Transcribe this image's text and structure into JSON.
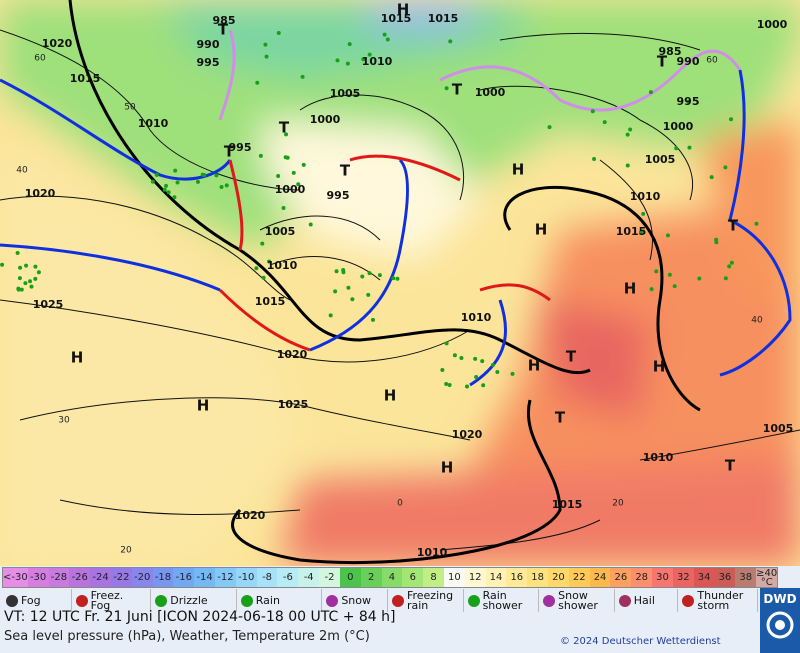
{
  "map": {
    "pressure_labels": [
      "1020",
      "1015",
      "1010",
      "1020",
      "1025",
      "1000",
      "1005",
      "1000",
      "995",
      "1005",
      "1010",
      "1015",
      "1020",
      "1025",
      "1020",
      "1010",
      "1015",
      "1010",
      "1020",
      "985",
      "990",
      "995",
      "995",
      "1015",
      "1015",
      "1010",
      "1000",
      "1000",
      "995",
      "990",
      "985",
      "1005",
      "1010",
      "1015",
      "1000",
      "1005",
      "1010"
    ],
    "centers": [
      "H",
      "H",
      "H",
      "H",
      "H",
      "H",
      "H",
      "H",
      "H",
      "H",
      "T",
      "T",
      "T",
      "T",
      "T",
      "T",
      "T",
      "T",
      "T",
      "T"
    ],
    "isotherm_labels": [
      "60",
      "50",
      "40",
      "30",
      "20",
      "0",
      "20",
      "40",
      "60"
    ]
  },
  "temperature_scale": {
    "labels": [
      "<-30",
      "-30",
      "-28",
      "-26",
      "-24",
      "-22",
      "-20",
      "-18",
      "-16",
      "-14",
      "-12",
      "-10",
      "-8",
      "-6",
      "-4",
      "-2",
      "0",
      "2",
      "4",
      "6",
      "8",
      "10",
      "12",
      "14",
      "16",
      "18",
      "20",
      "22",
      "24",
      "26",
      "28",
      "30",
      "32",
      "34",
      "36",
      "38",
      "≥40 °C"
    ],
    "colors": [
      "#e68ee6",
      "#d67ee0",
      "#c97ade",
      "#b874dc",
      "#a874e0",
      "#9878e4",
      "#8886ea",
      "#7896ee",
      "#70a8f2",
      "#74b8f4",
      "#84c8f6",
      "#96d6f8",
      "#a8e2f8",
      "#b8ecf4",
      "#c6f2ea",
      "#d4f6de",
      "#4cc44c",
      "#68d058",
      "#86dc66",
      "#a4e674",
      "#c2ee86",
      "#fafaf4",
      "#fff8d2",
      "#fff2b4",
      "#ffea98",
      "#ffe280",
      "#ffd86a",
      "#ffca56",
      "#ffb84a",
      "#ffa060",
      "#ff8e6c",
      "#f87670",
      "#ea6464",
      "#dc5656",
      "#cc5c58",
      "#b87c70",
      "#d4a8a4"
    ]
  },
  "weather_legend": [
    "Fog",
    "Freez. Fog",
    "Drizzle",
    "Rain",
    "Snow",
    "Freezing rain",
    "Rain shower",
    "Snow shower",
    "Hail",
    "Thunder storm"
  ],
  "footer": {
    "valid_time": "VT: 12 UTC Fr.  21 Juni [ICON 2024-06-18  00 UTC + 84 h]",
    "description": "Sea level pressure (hPa), Weather, Temperature 2m (°C)",
    "copyright": "© 2024 Deutscher Wetterdienst",
    "logo": "DWD"
  }
}
